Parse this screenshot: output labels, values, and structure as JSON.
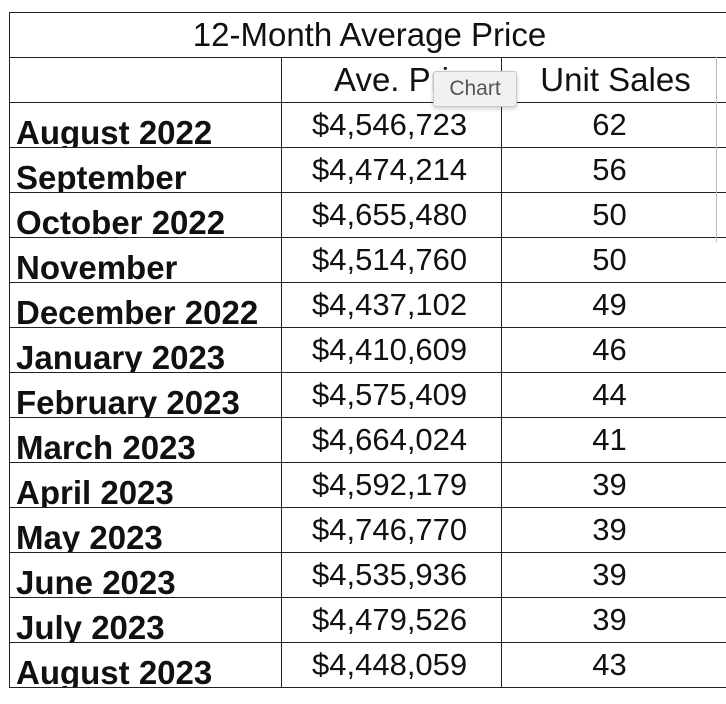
{
  "table": {
    "title": "12-Month Average Price",
    "headers": {
      "month": "",
      "price": "Ave. Pri",
      "sales": "Unit Sales"
    },
    "rows": [
      {
        "month": "August 2022",
        "price": "$4,546,723",
        "sales": "62"
      },
      {
        "month": "September",
        "price": "$4,474,214",
        "sales": "56"
      },
      {
        "month": "October 2022",
        "price": "$4,655,480",
        "sales": "50"
      },
      {
        "month": "November",
        "price": "$4,514,760",
        "sales": "50"
      },
      {
        "month": "December 2022",
        "price": "$4,437,102",
        "sales": "49"
      },
      {
        "month": "January 2023",
        "price": "$4,410,609",
        "sales": "46"
      },
      {
        "month": "February 2023",
        "price": "$4,575,409",
        "sales": "44"
      },
      {
        "month": "March 2023",
        "price": "$4,664,024",
        "sales": "41"
      },
      {
        "month": "April 2023",
        "price": "$4,592,179",
        "sales": "39"
      },
      {
        "month": "May 2023",
        "price": "$4,746,770",
        "sales": "39"
      },
      {
        "month": "June 2023",
        "price": "$4,535,936",
        "sales": "39"
      },
      {
        "month": "July 2023",
        "price": "$4,479,526",
        "sales": "39"
      },
      {
        "month": "August 2023",
        "price": "$4,448,059",
        "sales": "43"
      }
    ]
  },
  "tooltip": {
    "label": "Chart"
  }
}
